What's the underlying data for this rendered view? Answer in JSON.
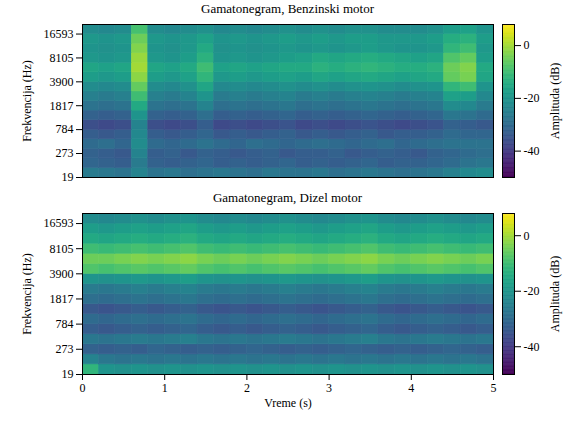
{
  "chart_data": [
    {
      "type": "heatmap",
      "title": "Gamatonegram, Benzinski motor",
      "ylabel": "Frekvencija (Hz)",
      "tick_labels": "y",
      "xlim": [
        0,
        5
      ],
      "xticks": [
        0,
        1,
        2,
        3,
        4,
        5
      ],
      "ylim": [
        19,
        22050
      ],
      "yticks": [
        19,
        273,
        784,
        1817,
        3900,
        8105,
        16593
      ],
      "x_edges": [
        0,
        0.2,
        0.4,
        0.6,
        0.8,
        1,
        1.2,
        1.4,
        1.6,
        1.8,
        2,
        2.2,
        2.4,
        2.6,
        2.8,
        3,
        3.2,
        3.4,
        3.6,
        3.8,
        4,
        4.2,
        4.4,
        4.6,
        4.8,
        5
      ],
      "y_edges": [
        19,
        100,
        206,
        347,
        534,
        782,
        1111,
        1545,
        2121,
        2884,
        3895,
        5233,
        7007,
        9355,
        12469,
        16588,
        22050
      ],
      "z": [
        [
          -26,
          -27,
          -28,
          -24,
          -28,
          -27,
          -29,
          -28,
          -27,
          -28,
          -29,
          -27,
          -28,
          -28,
          -27,
          -29,
          -28,
          -27,
          -28,
          -29,
          -28,
          -27,
          -25,
          -23,
          -22
        ],
        [
          -31,
          -32,
          -33,
          -26,
          -32,
          -33,
          -32,
          -31,
          -33,
          -32,
          -33,
          -32,
          -31,
          -33,
          -32,
          -33,
          -32,
          -31,
          -33,
          -32,
          -32,
          -31,
          -30,
          -28,
          -27
        ],
        [
          -32,
          -33,
          -34,
          -24,
          -33,
          -32,
          -34,
          -32,
          -33,
          -34,
          -33,
          -32,
          -34,
          -33,
          -33,
          -32,
          -34,
          -33,
          -32,
          -33,
          -34,
          -32,
          -31,
          -30,
          -29
        ],
        [
          -30,
          -29,
          -31,
          -22,
          -30,
          -31,
          -30,
          -28,
          -30,
          -31,
          -29,
          -30,
          -31,
          -30,
          -29,
          -30,
          -31,
          -30,
          -29,
          -31,
          -30,
          -29,
          -28,
          -28,
          -28
        ],
        [
          -33,
          -34,
          -33,
          -23,
          -33,
          -34,
          -33,
          -31,
          -34,
          -33,
          -34,
          -33,
          -32,
          -34,
          -33,
          -34,
          -33,
          -32,
          -34,
          -33,
          -33,
          -32,
          -30,
          -31,
          -31
        ],
        [
          -36,
          -37,
          -36,
          -24,
          -36,
          -37,
          -36,
          -33,
          -37,
          -36,
          -37,
          -36,
          -35,
          -37,
          -36,
          -37,
          -36,
          -35,
          -36,
          -37,
          -36,
          -35,
          -32,
          -33,
          -34
        ],
        [
          -32,
          -33,
          -32,
          -20,
          -32,
          -33,
          -32,
          -29,
          -33,
          -32,
          -33,
          -32,
          -31,
          -33,
          -32,
          -33,
          -32,
          -31,
          -32,
          -33,
          -32,
          -31,
          -27,
          -28,
          -30
        ],
        [
          -28,
          -29,
          -28,
          -15,
          -28,
          -29,
          -28,
          -24,
          -29,
          -28,
          -29,
          -28,
          -27,
          -29,
          -28,
          -29,
          -28,
          -27,
          -28,
          -29,
          -28,
          -27,
          -22,
          -23,
          -26
        ],
        [
          -25,
          -26,
          -25,
          -10,
          -25,
          -26,
          -24,
          -20,
          -26,
          -25,
          -26,
          -25,
          -24,
          -26,
          -25,
          -26,
          -25,
          -24,
          -25,
          -26,
          -25,
          -24,
          -17,
          -18,
          -23
        ],
        [
          -22,
          -23,
          -22,
          -6,
          -22,
          -23,
          -21,
          -16,
          -23,
          -22,
          -23,
          -22,
          -21,
          -22,
          -21,
          -22,
          -21,
          -20,
          -21,
          -22,
          -21,
          -20,
          -12,
          -10,
          -20
        ],
        [
          -18,
          -19,
          -18,
          -2,
          -18,
          -19,
          -17,
          -12,
          -19,
          -18,
          -19,
          -18,
          -17,
          -18,
          -16,
          -17,
          -16,
          -15,
          -16,
          -17,
          -16,
          -15,
          -6,
          -4,
          -16
        ],
        [
          -16,
          -17,
          -16,
          0,
          -16,
          -17,
          -15,
          -10,
          -17,
          -16,
          -17,
          -16,
          -15,
          -15,
          -13,
          -14,
          -13,
          -12,
          -13,
          -14,
          -14,
          -13,
          -5,
          -3,
          -15
        ],
        [
          -19,
          -20,
          -19,
          -1,
          -19,
          -20,
          -18,
          -13,
          -20,
          -19,
          -20,
          -19,
          -18,
          -17,
          -15,
          -16,
          -15,
          -14,
          -15,
          -16,
          -17,
          -16,
          -8,
          -6,
          -18
        ],
        [
          -20,
          -21,
          -20,
          -3,
          -20,
          -21,
          -19,
          -15,
          -21,
          -20,
          -21,
          -20,
          -19,
          -20,
          -19,
          -20,
          -19,
          -18,
          -19,
          -20,
          -20,
          -19,
          -12,
          -10,
          -19
        ],
        [
          -19,
          -20,
          -19,
          -5,
          -19,
          -20,
          -19,
          -17,
          -20,
          -19,
          -20,
          -19,
          -18,
          -19,
          -18,
          -19,
          -18,
          -18,
          -19,
          -19,
          -19,
          -18,
          -14,
          -13,
          -18
        ],
        [
          -22,
          -23,
          -22,
          -9,
          -22,
          -23,
          -22,
          -21,
          -23,
          -22,
          -23,
          -22,
          -21,
          -22,
          -21,
          -22,
          -21,
          -21,
          -22,
          -22,
          -22,
          -21,
          -18,
          -17,
          -20
        ]
      ],
      "colorbar": {
        "label": "Amplituda (dB)",
        "lim": [
          -50,
          8
        ],
        "ticks": [
          -40,
          -20,
          0
        ]
      }
    },
    {
      "type": "heatmap",
      "title": "Gamatonegram, Dizel motor",
      "xlabel": "Vreme (s)",
      "ylabel": "Frekvencija (Hz)",
      "xlim": [
        0,
        5
      ],
      "xticks": [
        0,
        1,
        2,
        3,
        4,
        5
      ],
      "ylim": [
        19,
        22050
      ],
      "yticks": [
        19,
        273,
        784,
        1817,
        3900,
        8105,
        16593
      ],
      "x_edges": [
        0,
        0.2,
        0.4,
        0.6,
        0.8,
        1,
        1.2,
        1.4,
        1.6,
        1.8,
        2,
        2.2,
        2.4,
        2.6,
        2.8,
        3,
        3.2,
        3.4,
        3.6,
        3.8,
        4,
        4.2,
        4.4,
        4.6,
        4.8,
        5
      ],
      "y_edges": [
        19,
        100,
        206,
        347,
        534,
        782,
        1111,
        1545,
        2121,
        2884,
        3895,
        5233,
        7007,
        9355,
        12469,
        16588,
        22050
      ],
      "z": [
        [
          -12,
          -20,
          -21,
          -20,
          -21,
          -20,
          -21,
          -20,
          -21,
          -20,
          -21,
          -20,
          -21,
          -20,
          -21,
          -20,
          -21,
          -20,
          -21,
          -20,
          -21,
          -20,
          -21,
          -20,
          -21
        ],
        [
          -24,
          -27,
          -28,
          -27,
          -28,
          -27,
          -28,
          -27,
          -28,
          -27,
          -28,
          -27,
          -28,
          -27,
          -28,
          -27,
          -28,
          -27,
          -28,
          -27,
          -28,
          -27,
          -28,
          -27,
          -28
        ],
        [
          -32,
          -33,
          -32,
          -33,
          -31,
          -32,
          -33,
          -32,
          -33,
          -32,
          -31,
          -32,
          -33,
          -32,
          -33,
          -32,
          -31,
          -32,
          -33,
          -32,
          -33,
          -32,
          -31,
          -32,
          -33
        ],
        [
          -27,
          -28,
          -27,
          -26,
          -27,
          -26,
          -25,
          -27,
          -28,
          -27,
          -28,
          -27,
          -26,
          -27,
          -28,
          -27,
          -26,
          -25,
          -27,
          -28,
          -27,
          -26,
          -27,
          -28,
          -27
        ],
        [
          -33,
          -34,
          -33,
          -32,
          -33,
          -32,
          -31,
          -33,
          -34,
          -33,
          -34,
          -33,
          -32,
          -33,
          -34,
          -33,
          -32,
          -31,
          -33,
          -34,
          -33,
          -32,
          -33,
          -34,
          -33
        ],
        [
          -30,
          -31,
          -30,
          -29,
          -30,
          -29,
          -28,
          -30,
          -31,
          -30,
          -31,
          -30,
          -29,
          -30,
          -31,
          -30,
          -29,
          -28,
          -30,
          -31,
          -30,
          -29,
          -30,
          -31,
          -30
        ],
        [
          -34,
          -35,
          -34,
          -33,
          -34,
          -33,
          -32,
          -34,
          -35,
          -34,
          -35,
          -34,
          -33,
          -34,
          -35,
          -34,
          -33,
          -32,
          -34,
          -35,
          -34,
          -33,
          -34,
          -35,
          -34
        ],
        [
          -29,
          -30,
          -29,
          -28,
          -29,
          -28,
          -27,
          -29,
          -30,
          -29,
          -30,
          -29,
          -28,
          -29,
          -30,
          -29,
          -28,
          -27,
          -29,
          -30,
          -29,
          -28,
          -29,
          -30,
          -29
        ],
        [
          -26,
          -27,
          -26,
          -25,
          -26,
          -25,
          -24,
          -26,
          -27,
          -26,
          -27,
          -26,
          -25,
          -26,
          -27,
          -26,
          -25,
          -24,
          -26,
          -27,
          -26,
          -25,
          -26,
          -27,
          -26
        ],
        [
          -20,
          -21,
          -20,
          -19,
          -20,
          -19,
          -18,
          -20,
          -21,
          -20,
          -21,
          -20,
          -19,
          -20,
          -21,
          -20,
          -19,
          -18,
          -20,
          -21,
          -20,
          -19,
          -20,
          -21,
          -20
        ],
        [
          -8,
          -9,
          -8,
          -7,
          -8,
          -7,
          -6,
          -8,
          -9,
          -8,
          -9,
          -8,
          -7,
          -8,
          -9,
          -8,
          -7,
          -6,
          -8,
          -9,
          -8,
          -7,
          -8,
          -9,
          -8
        ],
        [
          -5,
          -5,
          -4,
          -3,
          -4,
          -3,
          -2,
          -4,
          -5,
          -4,
          -5,
          -4,
          -3,
          -4,
          -5,
          -4,
          -3,
          -2,
          -4,
          -5,
          -4,
          -3,
          -4,
          -5,
          -4
        ],
        [
          -10,
          -11,
          -10,
          -9,
          -10,
          -9,
          -8,
          -10,
          -11,
          -10,
          -11,
          -10,
          -9,
          -10,
          -11,
          -10,
          -9,
          -8,
          -10,
          -11,
          -10,
          -9,
          -10,
          -11,
          -10
        ],
        [
          -15,
          -16,
          -15,
          -14,
          -15,
          -14,
          -13,
          -15,
          -16,
          -15,
          -16,
          -15,
          -14,
          -15,
          -16,
          -15,
          -14,
          -13,
          -15,
          -16,
          -15,
          -14,
          -15,
          -16,
          -15
        ],
        [
          -18,
          -19,
          -18,
          -17,
          -18,
          -17,
          -16,
          -18,
          -19,
          -18,
          -19,
          -18,
          -17,
          -18,
          -19,
          -18,
          -17,
          -16,
          -18,
          -19,
          -18,
          -17,
          -18,
          -19,
          -18
        ],
        [
          -22,
          -23,
          -22,
          -21,
          -22,
          -21,
          -20,
          -22,
          -23,
          -22,
          -23,
          -22,
          -21,
          -22,
          -23,
          -22,
          -21,
          -20,
          -22,
          -23,
          -22,
          -21,
          -22,
          -23,
          -22
        ]
      ],
      "colorbar": {
        "label": "Amplituda (dB)",
        "lim": [
          -50,
          8
        ],
        "ticks": [
          -40,
          -20,
          0
        ]
      }
    }
  ]
}
